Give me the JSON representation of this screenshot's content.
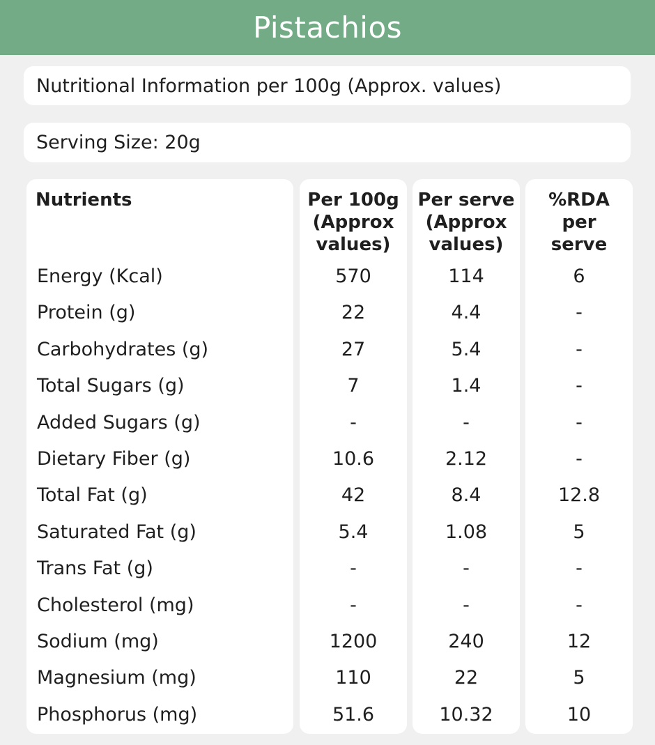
{
  "theme": {
    "accent": "#72ab86"
  },
  "title": "Pistachios",
  "info": "Nutritional Information per 100g (Approx. values)",
  "serving": "Serving Size:  20g",
  "headers": {
    "nutrient": [
      "Nutrients"
    ],
    "per100g": [
      "Per 100g",
      "(Approx",
      "values)"
    ],
    "perServe": [
      "Per serve",
      "(Approx",
      "values)"
    ],
    "rda": [
      "%RDA",
      "per",
      "serve"
    ]
  },
  "rows": [
    {
      "nutrient": "Energy (Kcal)",
      "per100g": "570",
      "perServe": "114",
      "rda": "6"
    },
    {
      "nutrient": "Protein (g)",
      "per100g": "22",
      "perServe": "4.4",
      "rda": "-"
    },
    {
      "nutrient": "Carbohydrates (g)",
      "per100g": "27",
      "perServe": "5.4",
      "rda": "-"
    },
    {
      "nutrient": "Total Sugars (g)",
      "per100g": "7",
      "perServe": "1.4",
      "rda": "-"
    },
    {
      "nutrient": "Added Sugars (g)",
      "per100g": "-",
      "perServe": "-",
      "rda": "-"
    },
    {
      "nutrient": "Dietary Fiber (g)",
      "per100g": "10.6",
      "perServe": "2.12",
      "rda": "-"
    },
    {
      "nutrient": "Total Fat (g)",
      "per100g": "42",
      "perServe": "8.4",
      "rda": "12.8"
    },
    {
      "nutrient": "Saturated Fat (g)",
      "per100g": "5.4",
      "perServe": "1.08",
      "rda": "5"
    },
    {
      "nutrient": "Trans Fat (g)",
      "per100g": "-",
      "perServe": "-",
      "rda": "-"
    },
    {
      "nutrient": "Cholesterol (mg)",
      "per100g": "-",
      "perServe": "-",
      "rda": "-"
    },
    {
      "nutrient": "Sodium (mg)",
      "per100g": "1200",
      "perServe": "240",
      "rda": "12"
    },
    {
      "nutrient": "Magnesium (mg)",
      "per100g": "110",
      "perServe": "22",
      "rda": "5"
    },
    {
      "nutrient": "Phosphorus (mg)",
      "per100g": "51.6",
      "perServe": "10.32",
      "rda": "10"
    }
  ]
}
